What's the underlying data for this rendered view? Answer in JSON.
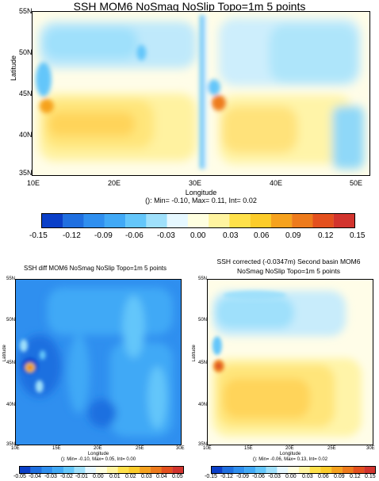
{
  "chart_data": [
    {
      "type": "heatmap",
      "title": "SSH MOM6 NoSmag NoSlip Topo=1m 5 points",
      "xlabel": "Longitude",
      "ylabel": "Latitude",
      "stats": "(): Min= -0.10, Max= 0.11, Int= 0.02",
      "x_ticks": [
        "10E",
        "20E",
        "30E",
        "40E",
        "50E"
      ],
      "y_ticks": [
        "35N",
        "40N",
        "45N",
        "50N",
        "55N"
      ],
      "xlim": [
        10,
        52
      ],
      "ylim": [
        35,
        55
      ],
      "colorbar_ticks": [
        "-0.15",
        "-0.12",
        "-0.09",
        "-0.06",
        "-0.03",
        "0.00",
        "0.03",
        "0.06",
        "0.09",
        "0.12",
        "0.15"
      ]
    },
    {
      "type": "heatmap",
      "title": "SSH diff MOM6 NoSmag NoSlip Topo=1m 5 points",
      "xlabel": "Longitude",
      "ylabel": "Latitude",
      "stats": "(): Min= -0.10, Max= 0.05, Int= 0.00",
      "x_ticks": [
        "10E",
        "15E",
        "20E",
        "25E",
        "30E"
      ],
      "y_ticks": [
        "35N",
        "40N",
        "45N",
        "50N",
        "55N"
      ],
      "xlim": [
        10,
        30
      ],
      "ylim": [
        35,
        55
      ],
      "colorbar_ticks": [
        "-0.05",
        "-0.04",
        "-0.03",
        "-0.02",
        "-0.01",
        "0.00",
        "0.01",
        "0.02",
        "0.03",
        "0.04",
        "0.05"
      ]
    },
    {
      "type": "heatmap",
      "title": "SSH corrected (-0.0347m) Second basin MOM6",
      "subtitle": "NoSmag NoSlip Topo=1m 5 points",
      "xlabel": "Longitude",
      "ylabel": "Latitude",
      "stats": "(): Min= -0.06, Max= 0.13, Int= 0.02",
      "x_ticks": [
        "10E",
        "15E",
        "20E",
        "25E",
        "30E"
      ],
      "y_ticks": [
        "35N",
        "40N",
        "45N",
        "50N",
        "55N"
      ],
      "xlim": [
        10,
        30
      ],
      "ylim": [
        35,
        55
      ],
      "colorbar_ticks": [
        "-0.15",
        "-0.12",
        "-0.09",
        "-0.06",
        "-0.03",
        "0.00",
        "0.03",
        "0.06",
        "0.09",
        "0.12",
        "0.15"
      ]
    }
  ],
  "colors": {
    "scale": [
      "#0a3fc8",
      "#1f6fe0",
      "#2f8fef",
      "#41a9f6",
      "#64c6fa",
      "#9fe0fb",
      "#e6f8ff",
      "#ffffe0",
      "#fff4a0",
      "#ffe14a",
      "#fccc2a",
      "#f6a21e",
      "#ee7b1c",
      "#e4501e",
      "#d2342e"
    ]
  }
}
